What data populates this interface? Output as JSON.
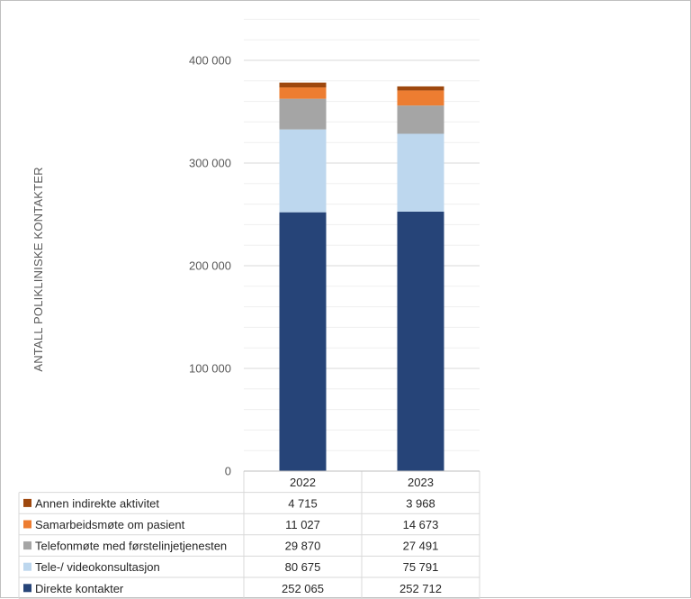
{
  "chart_data": {
    "type": "bar",
    "stacked": true,
    "categories": [
      "2022",
      "2023"
    ],
    "ylabel": "ANTALL POLIKLINISKE KONTAKTER",
    "ylim": [
      0,
      400000
    ],
    "yticks": [
      0,
      100000,
      200000,
      300000,
      400000
    ],
    "ytick_labels": [
      "0",
      "100 000",
      "200 000",
      "300 000",
      "400 000"
    ],
    "grid": true,
    "legend": "data-table-below",
    "series": [
      {
        "name": "Direkte kontakter",
        "color": "#264478",
        "values": [
          252065,
          252712
        ],
        "labels": [
          "252 065",
          "252 712"
        ]
      },
      {
        "name": "Tele-/ videokonsultasjon",
        "color": "#BDD7EE",
        "values": [
          80675,
          75791
        ],
        "labels": [
          "80 675",
          "75 791"
        ]
      },
      {
        "name": "Telefonmøte med førstelinjetjenesten",
        "color": "#A5A5A5",
        "values": [
          29870,
          27491
        ],
        "labels": [
          "29 870",
          "27 491"
        ]
      },
      {
        "name": "Samarbeidsmøte om pasient",
        "color": "#ED7D31",
        "values": [
          11027,
          14673
        ],
        "labels": [
          "11 027",
          "14 673"
        ]
      },
      {
        "name": "Annen indirekte aktivitet",
        "color": "#9E480E",
        "values": [
          4715,
          3968
        ],
        "labels": [
          "4 715",
          "3 968"
        ]
      }
    ]
  }
}
